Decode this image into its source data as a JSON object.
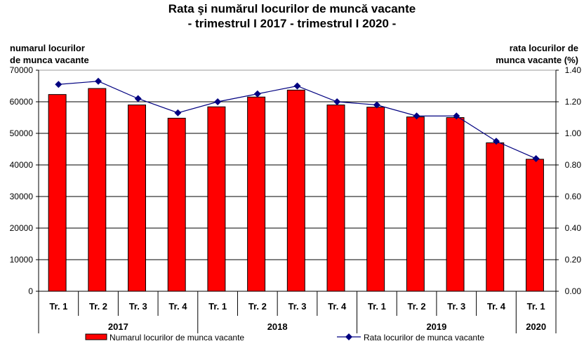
{
  "chart_data": {
    "type": "bar+line",
    "title": "Rata şi numărul locurilor de muncă vacante",
    "subtitle": "- trimestrul I 2017 - trimestrul I 2020 -",
    "ylabel_left": [
      "numarul locurilor",
      "de munca  vacante"
    ],
    "ylabel_right": [
      "rata locurilor de",
      "munca vacante (%)"
    ],
    "categories": [
      "Tr. 1",
      "Tr. 2",
      "Tr. 3",
      "Tr. 4",
      "Tr. 1",
      "Tr. 2",
      "Tr. 3",
      "Tr. 4",
      "Tr. 1",
      "Tr. 2",
      "Tr. 3",
      "Tr. 4",
      "Tr. 1"
    ],
    "years": [
      {
        "label": "2017",
        "span": 4
      },
      {
        "label": "2018",
        "span": 4
      },
      {
        "label": "2019",
        "span": 4
      },
      {
        "label": "2020",
        "span": 1
      }
    ],
    "ylim_left": [
      0,
      70000
    ],
    "yticks_left": [
      "0",
      "10000",
      "20000",
      "30000",
      "40000",
      "50000",
      "60000",
      "70000"
    ],
    "ylim_right": [
      0,
      1.4
    ],
    "yticks_right": [
      "0.00",
      "0.20",
      "0.40",
      "0.60",
      "0.80",
      "1.00",
      "1.20",
      "1.40"
    ],
    "series": [
      {
        "name": "Numarul locurilor de munca vacante",
        "type": "bar",
        "color": "#ff0000",
        "values": [
          62300,
          64200,
          59000,
          54800,
          58400,
          61500,
          63700,
          59000,
          58300,
          55200,
          55000,
          47000,
          41800
        ]
      },
      {
        "name": "Rata locurilor de munca vacante",
        "type": "line",
        "color": "#000080",
        "values": [
          1.31,
          1.33,
          1.22,
          1.13,
          1.2,
          1.25,
          1.3,
          1.2,
          1.18,
          1.11,
          1.11,
          0.95,
          0.84
        ]
      }
    ],
    "grid": true,
    "legend": "bottom"
  }
}
